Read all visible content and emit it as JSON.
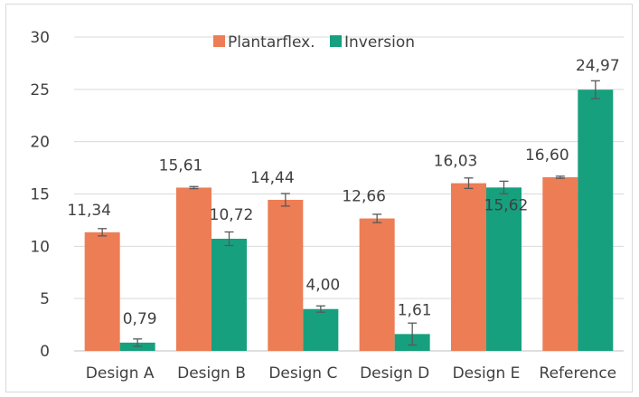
{
  "chart_data": {
    "type": "bar",
    "categories": [
      "Design A",
      "Design B",
      "Design C",
      "Design D",
      "Design E",
      "Reference"
    ],
    "series": [
      {
        "name": "Plantarflex.",
        "color": "#ED7D55",
        "values": [
          11.34,
          15.61,
          14.44,
          12.66,
          16.03,
          16.6
        ],
        "labels": [
          "11,34",
          "15,61",
          "14,44",
          "12,66",
          "16,03",
          "16,60"
        ],
        "errors": [
          0.35,
          0.1,
          0.6,
          0.4,
          0.5,
          0.1
        ]
      },
      {
        "name": "Inversion",
        "color": "#16A07E",
        "values": [
          0.79,
          10.72,
          4.0,
          1.61,
          15.62,
          24.97
        ],
        "labels": [
          "0,79",
          "10,72",
          "4,00",
          "1,61",
          "15,62",
          "24,97"
        ],
        "errors": [
          0.35,
          0.65,
          0.3,
          1.05,
          0.6,
          0.85
        ]
      }
    ],
    "yticks": [
      0,
      5,
      10,
      15,
      20,
      25,
      30
    ],
    "ylim": [
      0,
      30
    ],
    "grid": true,
    "legend_position": "top-center",
    "title": "",
    "xlabel": "",
    "ylabel": ""
  }
}
